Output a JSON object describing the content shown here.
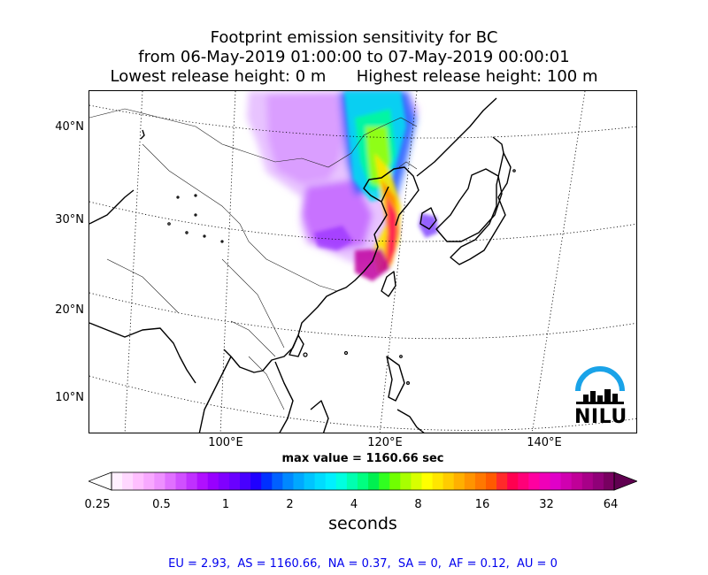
{
  "title": {
    "line1": "Footprint emission sensitivity for BC",
    "line2": "from 06-May-2019 01:00:00 to 07-May-2019 00:00:01",
    "line3": "Lowest release height: 0 m      Highest release height: 100 m"
  },
  "map": {
    "lat_labels": [
      "40°N",
      "30°N",
      "20°N",
      "10°N"
    ],
    "lon_labels": [
      "100°E",
      "120°E",
      "140°E"
    ],
    "max_value_label": "max value = 1160.66 sec",
    "logo_text": "NILU",
    "icons": [
      "nilu-logo-icon"
    ]
  },
  "colorbar": {
    "ticks": [
      "0.25",
      "0.5",
      "1",
      "2",
      "4",
      "8",
      "16",
      "32",
      "64"
    ],
    "unit": "seconds",
    "colors": [
      "#fff0ff",
      "#ffd8ff",
      "#ffbfff",
      "#f8a8ff",
      "#ee90ff",
      "#e070ff",
      "#d050ff",
      "#c030ff",
      "#b010ff",
      "#9800ff",
      "#8000ff",
      "#6a00ff",
      "#4800ff",
      "#2000ff",
      "#0030ff",
      "#0060ff",
      "#0088ff",
      "#00a8ff",
      "#00c4ff",
      "#00dcff",
      "#00f0ff",
      "#00ffe0",
      "#00ffb0",
      "#00ff80",
      "#00f050",
      "#30ff20",
      "#70ff00",
      "#a8ff00",
      "#d8ff00",
      "#ffff00",
      "#ffe600",
      "#ffcc00",
      "#ffb000",
      "#ff9400",
      "#ff7800",
      "#ff5a00",
      "#ff2a2a",
      "#ff0050",
      "#ff0078",
      "#ff00a0",
      "#f000b8",
      "#e000c8",
      "#d000b0",
      "#c00098",
      "#a80088",
      "#900078",
      "#780060"
    ]
  },
  "regions_line": "EU = 2.93,  AS = 1160.66,  NA = 0.37,  SA = 0,  AF = 0.12,  AU = 0"
}
